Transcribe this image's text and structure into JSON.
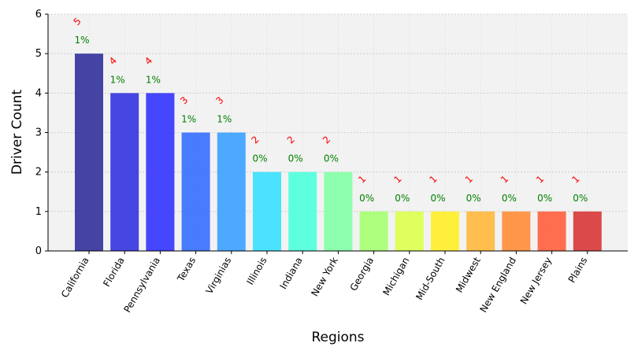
{
  "chart_data": {
    "type": "bar",
    "title": "",
    "xlabel": "Regions",
    "ylabel": "Driver Count",
    "ylim": [
      0,
      6
    ],
    "yticks": [
      "0",
      "1",
      "2",
      "3",
      "4",
      "5",
      "6"
    ],
    "grid": true,
    "categories": [
      "California",
      "Florida",
      "Pennsylvania",
      "Texas",
      "Virginias",
      "Illinois",
      "Indiana",
      "New York",
      "Georgia",
      "Michigan",
      "Mid-South",
      "Midwest",
      "New England",
      "New Jersey",
      "Plains"
    ],
    "values": [
      5,
      4,
      4,
      3,
      3,
      2,
      2,
      2,
      1,
      1,
      1,
      1,
      1,
      1,
      1
    ],
    "value_labels": [
      "5",
      "4",
      "4",
      "3",
      "3",
      "2",
      "2",
      "2",
      "1",
      "1",
      "1",
      "1",
      "1",
      "1",
      "1"
    ],
    "percent_labels": [
      "1%",
      "1%",
      "1%",
      "1%",
      "1%",
      "0%",
      "0%",
      "0%",
      "0%",
      "0%",
      "0%",
      "0%",
      "0%",
      "0%",
      "0%"
    ],
    "colors": [
      "#3a3aa0",
      "#3c3ce0",
      "#3c3cff",
      "#3f74ff",
      "#42a4ff",
      "#40e0ff",
      "#55ffdd",
      "#88ffaa",
      "#aaff77",
      "#ddff55",
      "#ffee33",
      "#ffbb44",
      "#ff9040",
      "#ff6644",
      "#d94040"
    ],
    "value_label_color": "#ff0000",
    "percent_label_color": "#008000",
    "plot_background": "#f2f2f2"
  }
}
